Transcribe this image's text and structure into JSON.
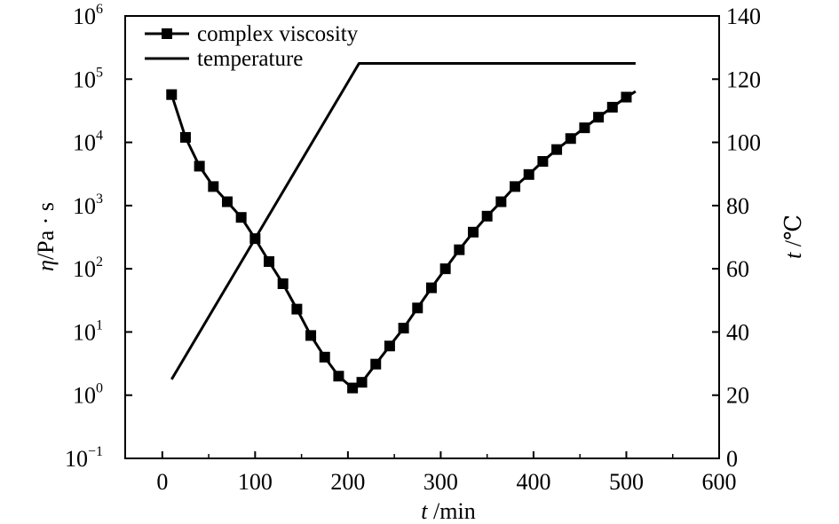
{
  "chart_data": {
    "type": "line",
    "title": "",
    "x_axis": {
      "label_var": "t",
      "label_unit": " /min",
      "range": [
        -40,
        600
      ],
      "ticks": [
        "0",
        "100",
        "200",
        "300",
        "400",
        "500",
        "600"
      ]
    },
    "y_left": {
      "label_var": "η",
      "label_unit": "/Pa · s",
      "scale": "log",
      "range": [
        0.1,
        1000000
      ],
      "ticks": [
        {
          "base": "10",
          "exp": "6"
        },
        {
          "base": "10",
          "exp": "5"
        },
        {
          "base": "10",
          "exp": "4"
        },
        {
          "base": "10",
          "exp": "3"
        },
        {
          "base": "10",
          "exp": "2"
        },
        {
          "base": "10",
          "exp": "1"
        },
        {
          "base": "10",
          "exp": "0"
        },
        {
          "base": "10",
          "exp": "−1"
        }
      ]
    },
    "y_right": {
      "label_var": "t",
      "label_unit": " /℃",
      "range": [
        0,
        140
      ],
      "ticks": [
        "140",
        "120",
        "100",
        "80",
        "60",
        "40",
        "20",
        "0"
      ]
    },
    "legend": {
      "placement": "top-left",
      "entries": [
        "complex viscosity",
        "temperature"
      ]
    },
    "series": [
      {
        "name": "complex viscosity",
        "axis": "left",
        "marker": "square",
        "x": [
          10,
          25,
          40,
          55,
          70,
          85,
          100,
          115,
          130,
          145,
          160,
          175,
          190,
          205,
          215,
          230,
          245,
          260,
          275,
          290,
          305,
          320,
          335,
          350,
          365,
          380,
          395,
          410,
          425,
          440,
          455,
          470,
          485,
          500
        ],
        "y": [
          57000,
          12000,
          4200,
          2000,
          1150,
          650,
          300,
          130,
          58,
          23,
          8.8,
          4,
          2,
          1.3,
          1.6,
          3.1,
          6,
          11.5,
          24,
          50,
          100,
          200,
          380,
          680,
          1150,
          2000,
          3100,
          5000,
          7700,
          11500,
          17000,
          25000,
          36000,
          52000
        ]
      },
      {
        "name": "temperature",
        "axis": "right",
        "marker": "none",
        "x": [
          10,
          212,
          510
        ],
        "y": [
          25,
          125,
          125
        ]
      }
    ],
    "viscosity_curve_end": {
      "x": 510,
      "y": 64000
    },
    "grid": false
  }
}
